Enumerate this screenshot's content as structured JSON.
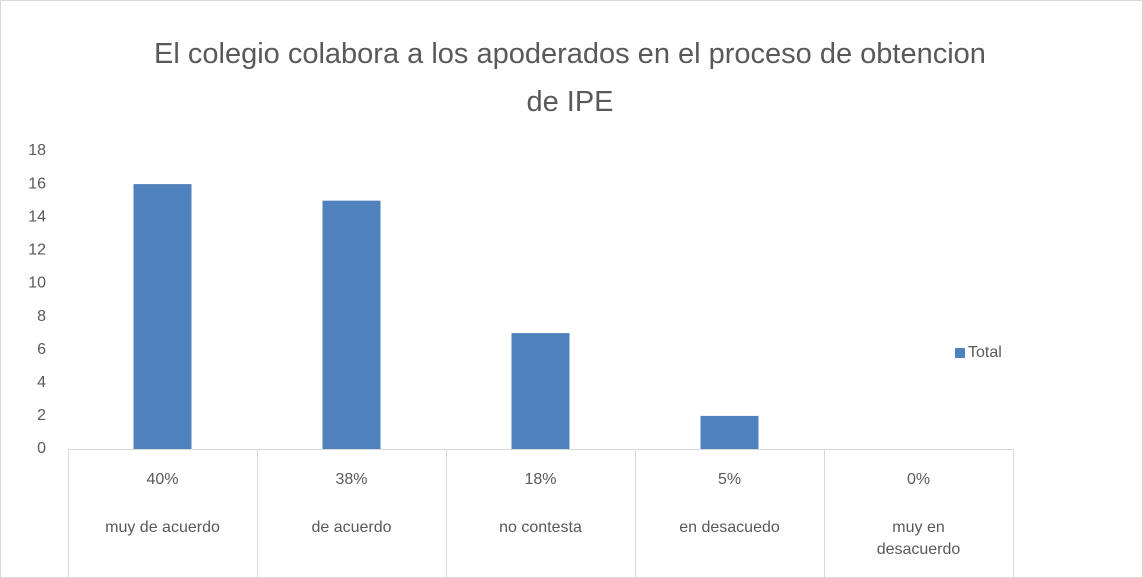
{
  "chart_data": {
    "type": "bar",
    "title": "El colegio colabora a los apoderados en el proceso de obtencion de IPE",
    "categories": [
      "muy de acuerdo",
      "de acuerdo",
      "no contesta",
      "en desacuedo",
      "muy en desacuerdo"
    ],
    "category_shares": [
      "40%",
      "38%",
      "18%",
      "5%",
      "0%"
    ],
    "series": [
      {
        "name": "Total",
        "color": "#4f81bd",
        "values": [
          16,
          15,
          7,
          2,
          0
        ]
      }
    ],
    "ylim": [
      0,
      18
    ],
    "yticks": [
      0,
      2,
      4,
      6,
      8,
      10,
      12,
      14,
      16,
      18
    ],
    "grid": false,
    "legend": "right"
  }
}
